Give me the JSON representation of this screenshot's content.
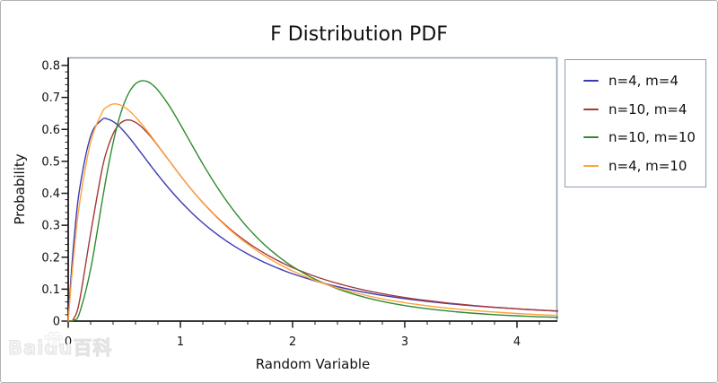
{
  "chart": {
    "title": "F Distribution PDF",
    "xlabel": "Random Variable",
    "ylabel": "Probability",
    "watermark": "Baidu百科",
    "frame_color": "#91a1b8",
    "axis_color": "#1b1b1b",
    "tick_label_color": "#111111",
    "legend_border_color": "#8b9cb6"
  },
  "chart_data": {
    "type": "line",
    "title": "F Distribution PDF",
    "xlabel": "Random Variable",
    "ylabel": "Probability",
    "xlim": [
      0,
      4.36
    ],
    "ylim": [
      0,
      0.8
    ],
    "grid": false,
    "legend_position": "outside-right",
    "x_major_tick_values": [
      0,
      1,
      2,
      3,
      4
    ],
    "x_major_tick_labels": [
      "0",
      "1",
      "2",
      "3",
      "4"
    ],
    "x_minor_step": 0.2,
    "y_major_tick_values": [
      0,
      0.1,
      0.2,
      0.3,
      0.4,
      0.5,
      0.6,
      0.7,
      0.8
    ],
    "y_major_tick_labels": [
      "0",
      "0.1",
      "0.2",
      "0.3",
      "0.4",
      "0.5",
      "0.6",
      "0.7",
      "0.8"
    ],
    "y_minor_step": 0.02,
    "x": [
      0,
      0.02,
      0.05,
      0.1,
      0.2,
      0.3,
      0.35,
      0.4,
      0.45,
      0.5,
      0.55,
      0.6,
      0.65,
      0.7,
      0.75,
      0.8,
      0.9,
      1,
      1.1,
      1.2,
      1.3,
      1.4,
      1.5,
      1.6,
      1.7,
      1.8,
      1.9,
      2,
      2.2,
      2.4,
      2.6,
      2.8,
      3,
      3.2,
      3.4,
      3.6,
      3.8,
      4,
      4.2,
      4.4
    ],
    "series": [
      {
        "name": "n=4, m=4",
        "color": "#3a3ab3",
        "values": [
          0,
          0.1109,
          0.2468,
          0.4098,
          0.5787,
          0.6302,
          0.6322,
          0.6247,
          0.6108,
          0.5926,
          0.5717,
          0.5493,
          0.5262,
          0.5029,
          0.4798,
          0.4572,
          0.4144,
          0.375,
          0.3394,
          0.3074,
          0.2787,
          0.2532,
          0.2304,
          0.2101,
          0.1919,
          0.1757,
          0.1612,
          0.1481,
          0.1259,
          0.1078,
          0.0929,
          0.0806,
          0.0703,
          0.0617,
          0.0544,
          0.0482,
          0.043,
          0.0384,
          0.0345,
          0.031
        ]
      },
      {
        "name": "n=10, m=4",
        "color": "#a43a3a",
        "values": [
          0,
          0.0003,
          0.008,
          0.0614,
          0.2744,
          0.4721,
          0.5396,
          0.5859,
          0.614,
          0.6272,
          0.629,
          0.6221,
          0.609,
          0.5914,
          0.571,
          0.5487,
          0.5019,
          0.4554,
          0.4113,
          0.3708,
          0.3341,
          0.3012,
          0.2719,
          0.2458,
          0.2226,
          0.202,
          0.1837,
          0.1674,
          0.14,
          0.118,
          0.1003,
          0.0859,
          0.074,
          0.0642,
          0.0561,
          0.0492,
          0.0434,
          0.0385,
          0.0343,
          0.0306
        ]
      },
      {
        "name": "n=10, m=10",
        "color": "#2e8b2e",
        "values": [
          0,
          0.0001,
          0.0024,
          0.0243,
          0.1628,
          0.3702,
          0.4702,
          0.5576,
          0.6288,
          0.6828,
          0.7202,
          0.7426,
          0.7519,
          0.7503,
          0.74,
          0.7227,
          0.6742,
          0.6152,
          0.553,
          0.4918,
          0.4343,
          0.3817,
          0.3344,
          0.2924,
          0.2556,
          0.2233,
          0.1952,
          0.1707,
          0.1311,
          0.1013,
          0.0787,
          0.0616,
          0.0487,
          0.0387,
          0.031,
          0.0249,
          0.0202,
          0.0165,
          0.0136,
          0.0112
        ]
      },
      {
        "name": "n=4, m=10",
        "color": "#ffa23f",
        "values": [
          0,
          0.0908,
          0.2089,
          0.3648,
          0.5602,
          0.6514,
          0.6714,
          0.6794,
          0.6781,
          0.6698,
          0.6563,
          0.6389,
          0.6188,
          0.5969,
          0.5737,
          0.55,
          0.502,
          0.4553,
          0.4113,
          0.3703,
          0.3329,
          0.2989,
          0.2682,
          0.2407,
          0.216,
          0.194,
          0.1743,
          0.1568,
          0.1272,
          0.1037,
          0.0849,
          0.0698,
          0.0577,
          0.048,
          0.04,
          0.0336,
          0.0283,
          0.0239,
          0.0203,
          0.0173
        ]
      }
    ]
  }
}
